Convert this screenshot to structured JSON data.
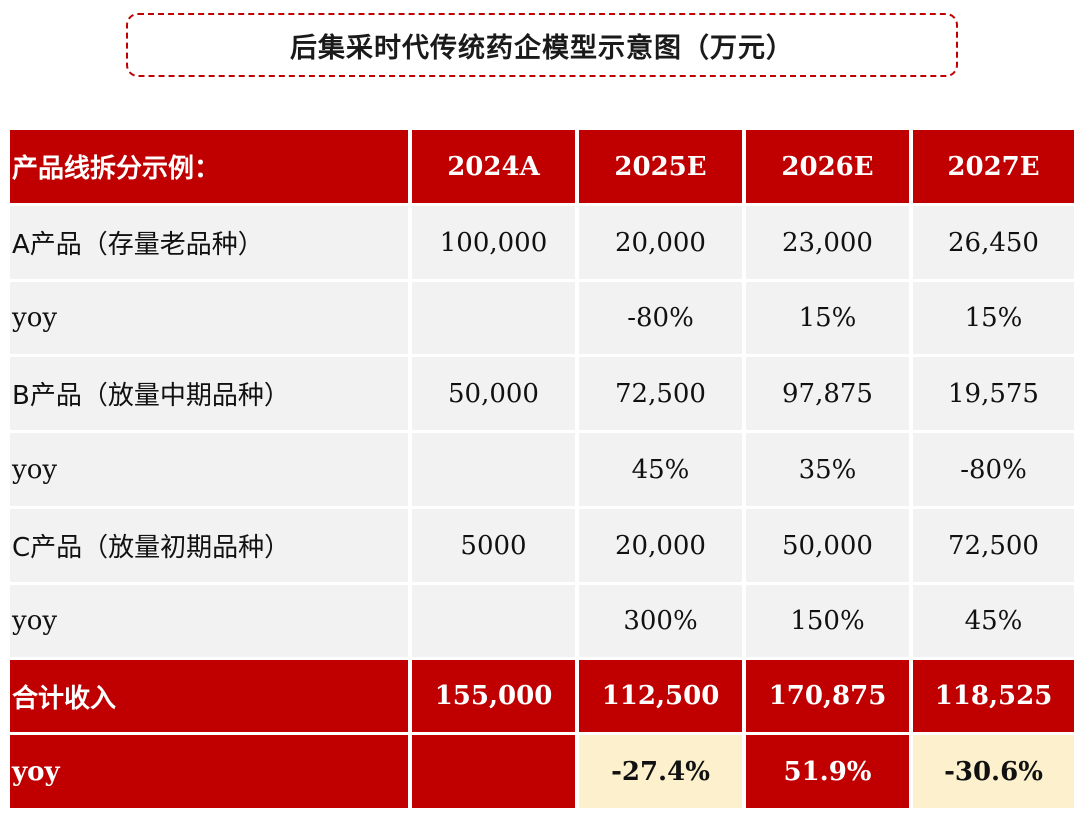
{
  "title": "后集采时代传统药企模型示意图（万元）",
  "table": {
    "header": {
      "label": "产品线拆分示例：",
      "cols": [
        "2024A",
        "2025E",
        "2026E",
        "2027E"
      ]
    },
    "rows": [
      {
        "label": "A产品（存量老品种）",
        "values": [
          "100,000",
          "20,000",
          "23,000",
          "26,450"
        ]
      },
      {
        "label": "yoy",
        "values": [
          "",
          "-80%",
          "15%",
          "15%"
        ]
      },
      {
        "label": "B产品（放量中期品种）",
        "values": [
          "50,000",
          "72,500",
          "97,875",
          "19,575"
        ]
      },
      {
        "label": "yoy",
        "values": [
          "",
          "45%",
          "35%",
          "-80%"
        ]
      },
      {
        "label": "C产品（放量初期品种）",
        "values": [
          "5000",
          "20,000",
          "50,000",
          "72,500"
        ]
      },
      {
        "label": "yoy",
        "values": [
          "",
          "300%",
          "150%",
          "45%"
        ]
      }
    ],
    "total": {
      "label": "合计收入",
      "values": [
        "155,000",
        "112,500",
        "170,875",
        "118,525"
      ]
    },
    "total_yoy": {
      "label": "yoy",
      "values": [
        "",
        "-27.4%",
        "51.9%",
        "-30.6%"
      ]
    }
  },
  "colors": {
    "accent_red": "#c00000",
    "row_gray": "#f2f2f2",
    "highlight_cream": "#fdf1cd"
  }
}
